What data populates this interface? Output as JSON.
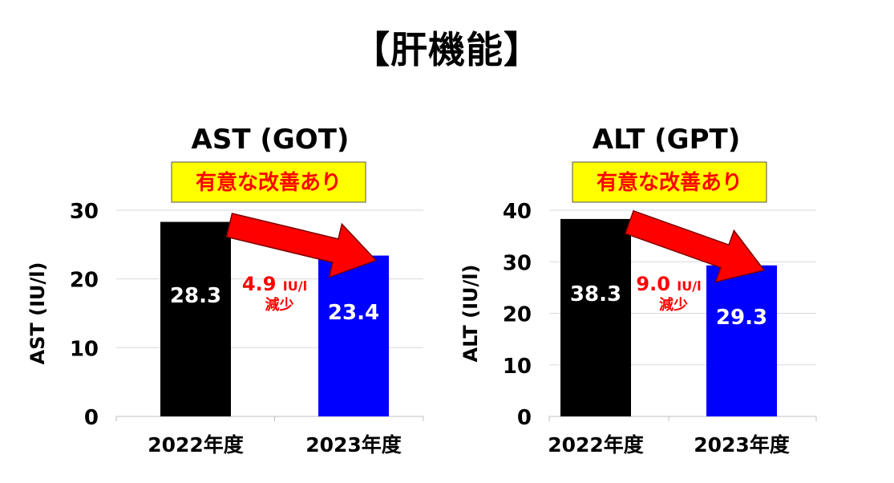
{
  "page_title": "【肝機能】",
  "chart_data": [
    {
      "type": "bar",
      "title": "AST (GOT)",
      "ylabel": "AST (IU/l)",
      "categories": [
        "2022年度",
        "2023年度"
      ],
      "values": [
        28.3,
        23.4
      ],
      "value_labels": [
        "28.3",
        "23.4"
      ],
      "ylim": [
        0,
        30
      ],
      "yticks": [
        0,
        10,
        20,
        30
      ],
      "grid": true,
      "bar_colors": [
        "#000000",
        "#0000ff"
      ],
      "badge": "有意な改善あり",
      "reduction_value": "4.9",
      "reduction_unit": "IU/l",
      "reduction_word": "減少"
    },
    {
      "type": "bar",
      "title": "ALT (GPT)",
      "ylabel": "ALT (IU/l)",
      "categories": [
        "2022年度",
        "2023年度"
      ],
      "values": [
        38.3,
        29.3
      ],
      "value_labels": [
        "38.3",
        "29.3"
      ],
      "ylim": [
        0,
        40
      ],
      "yticks": [
        0,
        10,
        20,
        30,
        40
      ],
      "grid": true,
      "bar_colors": [
        "#000000",
        "#0000ff"
      ],
      "badge": "有意な改善あり",
      "reduction_value": "9.0",
      "reduction_unit": "IU/l",
      "reduction_word": "減少"
    }
  ],
  "colors": {
    "badge_fill": "#ffff00",
    "badge_text": "#ff0000",
    "arrow": "#ff0000",
    "reduction_text": "#ff0000",
    "grid": "#d9d9d9"
  }
}
